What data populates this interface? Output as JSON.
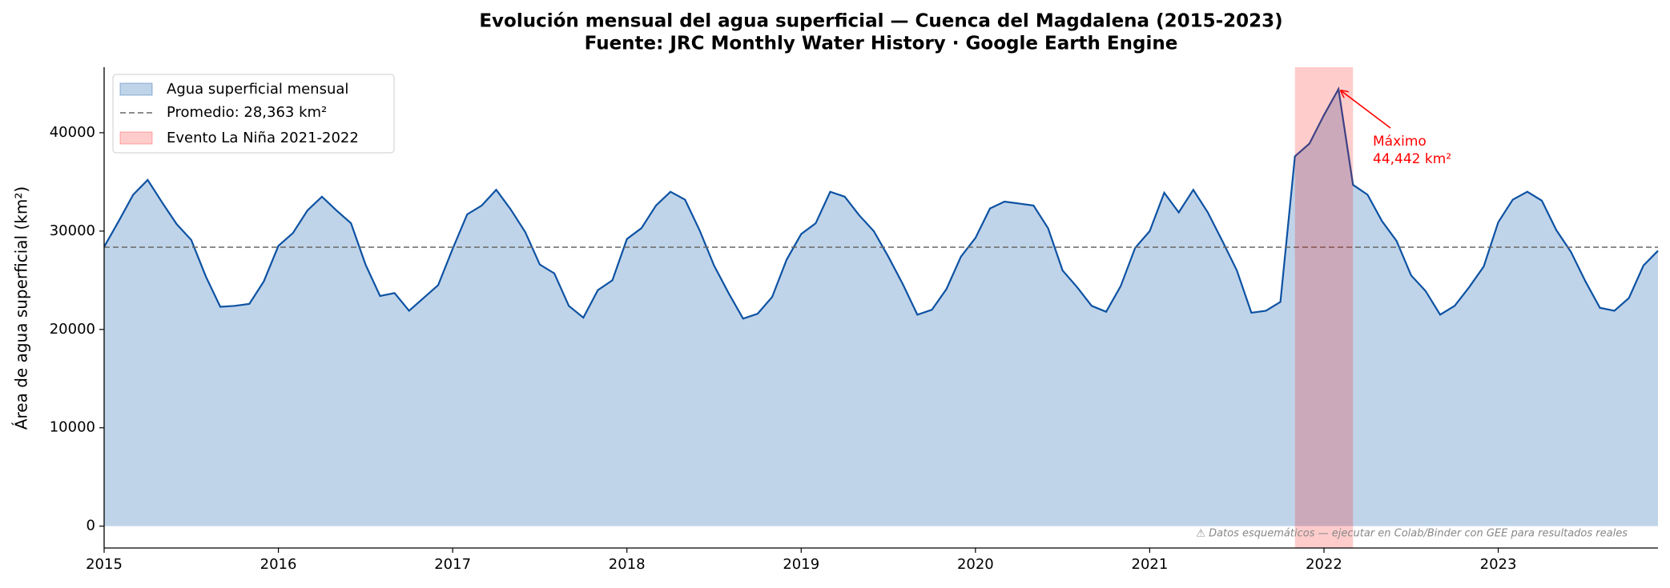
{
  "chart_data": {
    "type": "area",
    "title": "Evolución mensual del agua superficial — Cuenca del Magdalena (2015-2023)",
    "subtitle": "Fuente: JRC Monthly Water History · Google Earth Engine",
    "y_label": "Área de agua superficial (km²)",
    "x": [
      "2015-01",
      "2015-02",
      "2015-03",
      "2015-04",
      "2015-05",
      "2015-06",
      "2015-07",
      "2015-08",
      "2015-09",
      "2015-10",
      "2015-11",
      "2015-12",
      "2016-01",
      "2016-02",
      "2016-03",
      "2016-04",
      "2016-05",
      "2016-06",
      "2016-07",
      "2016-08",
      "2016-09",
      "2016-10",
      "2016-11",
      "2016-12",
      "2017-01",
      "2017-02",
      "2017-03",
      "2017-04",
      "2017-05",
      "2017-06",
      "2017-07",
      "2017-08",
      "2017-09",
      "2017-10",
      "2017-11",
      "2017-12",
      "2018-01",
      "2018-02",
      "2018-03",
      "2018-04",
      "2018-05",
      "2018-06",
      "2018-07",
      "2018-08",
      "2018-09",
      "2018-10",
      "2018-11",
      "2018-12",
      "2019-01",
      "2019-02",
      "2019-03",
      "2019-04",
      "2019-05",
      "2019-06",
      "2019-07",
      "2019-08",
      "2019-09",
      "2019-10",
      "2019-11",
      "2019-12",
      "2020-01",
      "2020-02",
      "2020-03",
      "2020-04",
      "2020-05",
      "2020-06",
      "2020-07",
      "2020-08",
      "2020-09",
      "2020-10",
      "2020-11",
      "2020-12",
      "2021-01",
      "2021-02",
      "2021-03",
      "2021-04",
      "2021-05",
      "2021-06",
      "2021-07",
      "2021-08",
      "2021-09",
      "2021-10",
      "2021-11",
      "2021-12",
      "2022-01",
      "2022-02",
      "2022-03",
      "2022-04",
      "2022-05",
      "2022-06",
      "2022-07",
      "2022-08",
      "2022-09",
      "2022-10",
      "2022-11",
      "2022-12",
      "2023-01",
      "2023-02",
      "2023-03",
      "2023-04",
      "2023-05",
      "2023-06",
      "2023-07",
      "2023-08",
      "2023-09",
      "2023-10",
      "2023-11",
      "2023-12"
    ],
    "series": [
      {
        "name": "Agua superficial mensual",
        "color": "#0d52a3",
        "fill": "#c0d4e9",
        "values": [
          28400,
          31000,
          33700,
          35200,
          32900,
          30700,
          29100,
          25400,
          22300,
          22400,
          22600,
          24900,
          28500,
          29800,
          32100,
          33500,
          32100,
          30800,
          26600,
          23400,
          23700,
          21900,
          23200,
          24500,
          28200,
          31700,
          32600,
          34200,
          32200,
          29900,
          26600,
          25700,
          22400,
          21200,
          24000,
          25000,
          29200,
          30300,
          32600,
          34000,
          33200,
          30100,
          26500,
          23700,
          21100,
          21600,
          23300,
          27100,
          29700,
          30800,
          34000,
          33500,
          31600,
          30000,
          27400,
          24600,
          21500,
          22000,
          24100,
          27400,
          29300,
          32300,
          33000,
          32800,
          32600,
          30300,
          26000,
          24300,
          22400,
          21800,
          24400,
          28300,
          30000,
          33900,
          31900,
          34200,
          31900,
          29000,
          26000,
          21700,
          21900,
          22800,
          37600,
          38900,
          41800,
          44442,
          34700,
          33700,
          31000,
          29000,
          25500,
          23900,
          21500,
          22400,
          24300,
          26400,
          30900,
          33200,
          34000,
          33100,
          30100,
          27900,
          24900,
          22200,
          21900,
          23200,
          26500,
          28000
        ]
      }
    ],
    "mean": {
      "value": 28363,
      "label": "Promedio: 28,363 km²",
      "color": "#666666"
    },
    "span": {
      "name": "Evento La Niña 2021-2022",
      "x": [
        "2021-11",
        "2022-03"
      ],
      "color": "rgba(255,0,0,0.2)"
    },
    "annotation": {
      "lines": [
        "Máximo",
        "44,442 km²"
      ],
      "x": "2022-02",
      "y": 44442,
      "color": "#ff0000"
    },
    "footnote": "⚠ Datos esquemáticos — ejecutar en Colab/Binder con GEE para resultados reales",
    "xlim": [
      "2015-01",
      "2023-12"
    ],
    "xticks": [
      {
        "value": "2015-01",
        "label": "2015"
      },
      {
        "value": "2016-01",
        "label": "2016"
      },
      {
        "value": "2017-01",
        "label": "2017"
      },
      {
        "value": "2018-01",
        "label": "2018"
      },
      {
        "value": "2019-01",
        "label": "2019"
      },
      {
        "value": "2020-01",
        "label": "2020"
      },
      {
        "value": "2021-01",
        "label": "2021"
      },
      {
        "value": "2022-01",
        "label": "2022"
      },
      {
        "value": "2023-01",
        "label": "2023"
      }
    ],
    "ylim": [
      -2222,
      46664
    ],
    "yticks": [
      0,
      10000,
      20000,
      30000,
      40000
    ],
    "legend": "upper left"
  }
}
